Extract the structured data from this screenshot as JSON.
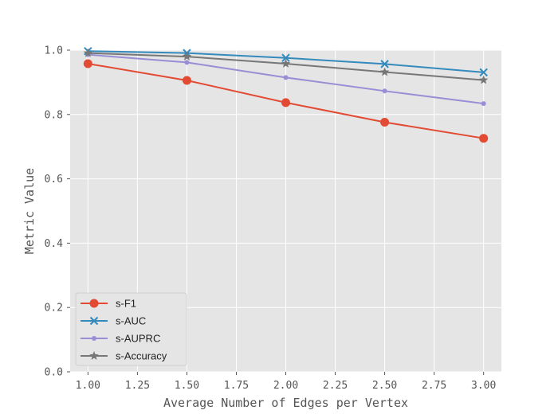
{
  "chart_data": {
    "type": "line",
    "xlabel": "Average Number of Edges per Vertex",
    "ylabel": "Metric Value",
    "xlim": [
      0.91,
      3.09
    ],
    "ylim": [
      0.0,
      1.0
    ],
    "x_ticks": [
      "1.00",
      "1.25",
      "1.50",
      "1.75",
      "2.00",
      "2.25",
      "2.50",
      "2.75",
      "3.00"
    ],
    "y_ticks": [
      "0.0",
      "0.2",
      "0.4",
      "0.6",
      "0.8",
      "1.0"
    ],
    "grid": true,
    "legend_position": "lower-left",
    "x": [
      1.0,
      1.5,
      2.0,
      2.5,
      3.0
    ],
    "series": [
      {
        "name": "s-F1",
        "values": [
          0.958,
          0.906,
          0.837,
          0.776,
          0.726
        ],
        "color": "#E24A33",
        "marker": "circle"
      },
      {
        "name": "s-AUC",
        "values": [
          0.997,
          0.991,
          0.976,
          0.957,
          0.931
        ],
        "color": "#348ABD",
        "marker": "x"
      },
      {
        "name": "s-AUPRC",
        "values": [
          0.986,
          0.962,
          0.915,
          0.873,
          0.834
        ],
        "color": "#988ED5",
        "marker": "dot"
      },
      {
        "name": "s-Accuracy",
        "values": [
          0.991,
          0.98,
          0.958,
          0.932,
          0.907
        ],
        "color": "#777777",
        "marker": "star"
      }
    ]
  }
}
